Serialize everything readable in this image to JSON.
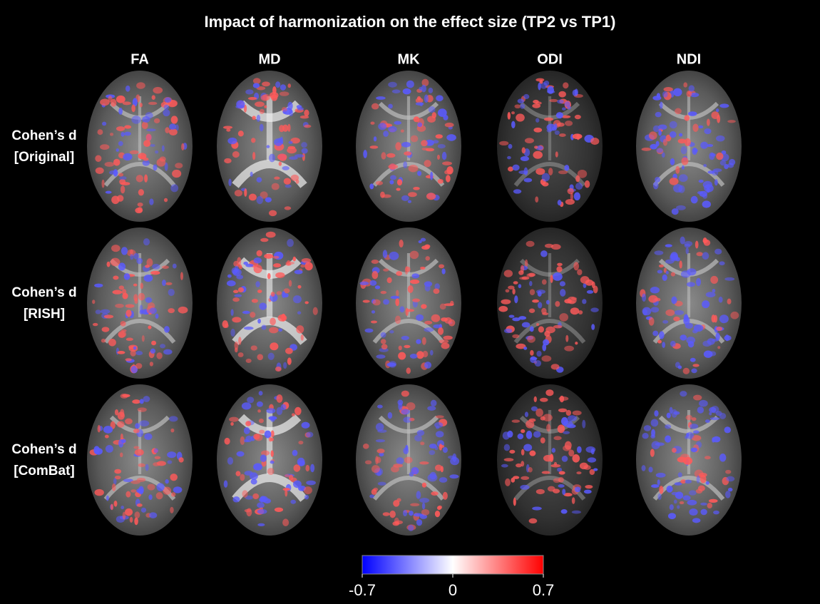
{
  "title": "Impact of harmonization on the effect size (TP2 vs TP1)",
  "columns": [
    "FA",
    "MD",
    "MK",
    "ODI",
    "NDI"
  ],
  "rows": [
    [
      "Cohen’s d",
      "[Original]"
    ],
    [
      "Cohen’s d",
      "[RISH]"
    ],
    [
      "Cohen’s d",
      "[ComBat]"
    ]
  ],
  "colorbar": {
    "lim": [
      -0.7,
      0.7
    ],
    "ticks": [
      -0.7,
      0,
      0.7
    ],
    "colors": [
      "#0000ff",
      "#ffffff",
      "#ff0000"
    ]
  }
}
